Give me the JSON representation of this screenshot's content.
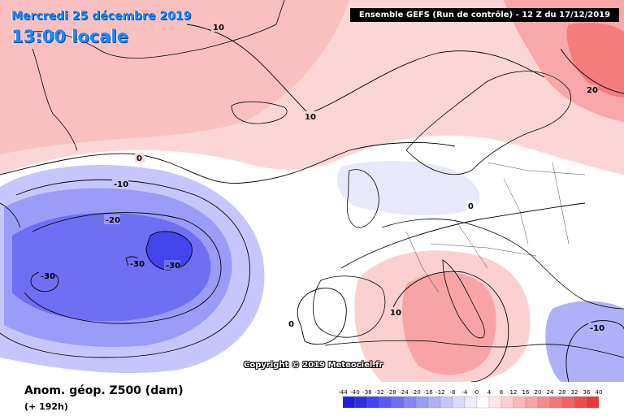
{
  "header": {
    "date": "Mercredi 25 décembre 2019",
    "time": "13:00 locale",
    "run": "Ensemble GEFS (Run de contrôle) - 12 Z du 17/12/2019"
  },
  "map": {
    "copyright": "Copyright © 2019 Meteociel.fr",
    "contour_labels": [
      "10",
      "10",
      "0",
      "-10",
      "-20",
      "-30",
      "-30",
      "-30",
      "0",
      "0",
      "10",
      "20",
      "-10"
    ]
  },
  "footer": {
    "parameter": "Anom. géop. Z500 (dam)",
    "lead": "(+ 192h)"
  },
  "legend": {
    "values": [
      "-44",
      "-40",
      "-36",
      "-32",
      "-28",
      "-24",
      "-20",
      "-16",
      "-12",
      "-8",
      "-4",
      "0",
      "4",
      "8",
      "12",
      "16",
      "20",
      "24",
      "28",
      "32",
      "36",
      "40"
    ],
    "colors": [
      "#1f1fe0",
      "#2f2fe6",
      "#4444ec",
      "#5a5af0",
      "#6f6ff3",
      "#8585f6",
      "#9b9bf8",
      "#b0b0fa",
      "#c6c6fc",
      "#dadafd",
      "#ececfe",
      "#ffffff",
      "#fde6e6",
      "#fcd0d0",
      "#fababa",
      "#f8a4a4",
      "#f68e8e",
      "#f47878",
      "#f26262",
      "#f04c4c",
      "#ee3636",
      "#ec2020"
    ]
  }
}
